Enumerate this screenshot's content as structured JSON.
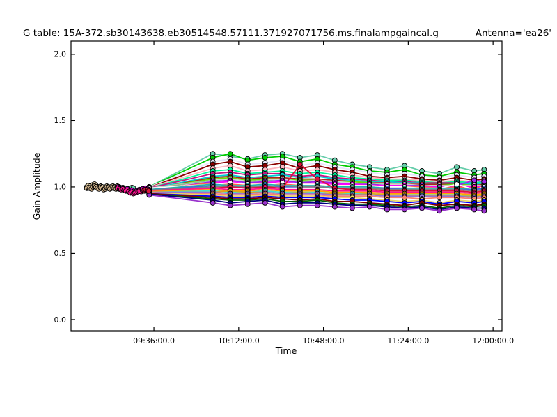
{
  "chart_data": {
    "type": "line",
    "title": {
      "table": "G table: 15A-372.sb30143638.eb30514548.57111.371927071756.ms.finalampgaincal.g",
      "antenna": "Antenna='ea26'"
    },
    "xlabel": "Time",
    "ylabel": "Gain Amplitude",
    "x_unit": "minutes after 09:00:00",
    "xlim_min": [
      0.8,
      183.8
    ],
    "ylim": [
      -0.084,
      2.099
    ],
    "x_ticks": [
      {
        "label": "09:36:00.0",
        "t": 36
      },
      {
        "label": "10:12:00.0",
        "t": 72
      },
      {
        "label": "10:48:00.0",
        "t": 108
      },
      {
        "label": "11:24:00.0",
        "t": 144
      },
      {
        "label": "12:00:00.0",
        "t": 180
      }
    ],
    "y_ticks": [
      {
        "label": "0.0",
        "v": 0.0
      },
      {
        "label": "0.5",
        "v": 0.5
      },
      {
        "label": "1.0",
        "v": 1.0
      },
      {
        "label": "1.5",
        "v": 1.5
      },
      {
        "label": "2.0",
        "v": 2.0
      }
    ],
    "grid": false,
    "legend": "none",
    "marker": "circle",
    "columns_t": [
      34,
      61,
      68.4,
      75.8,
      83.2,
      90.6,
      98,
      105.4,
      112.8,
      120.2,
      127.6,
      135,
      142.4,
      149.8,
      157.2,
      164.6,
      172,
      176.2
    ],
    "series": [
      {
        "color": "#66CDAA",
        "y": [
          1.0,
          1.25,
          1.23,
          1.21,
          1.24,
          1.25,
          1.22,
          1.24,
          1.2,
          1.17,
          1.15,
          1.13,
          1.16,
          1.12,
          1.1,
          1.15,
          1.12,
          1.13
        ]
      },
      {
        "color": "#00CC00",
        "y": [
          1.0,
          1.22,
          1.25,
          1.2,
          1.22,
          1.23,
          1.19,
          1.21,
          1.17,
          1.15,
          1.12,
          1.11,
          1.13,
          1.09,
          1.08,
          1.11,
          1.09,
          1.1
        ]
      },
      {
        "color": "#E6E6FA",
        "y": [
          1.0,
          1.19,
          1.21,
          1.17,
          1.18,
          1.2,
          1.16,
          1.18,
          1.15,
          1.13,
          1.11,
          1.09,
          1.1,
          1.08,
          1.07,
          1.09,
          1.07,
          1.08
        ]
      },
      {
        "color": "#8B0000",
        "y": [
          0.995,
          1.17,
          1.19,
          1.15,
          1.16,
          1.18,
          1.14,
          1.16,
          1.13,
          1.11,
          1.08,
          1.07,
          1.08,
          1.06,
          1.05,
          1.07,
          1.05,
          1.06
        ]
      },
      {
        "color": "#FFB6C1",
        "y": [
          0.995,
          1.14,
          1.16,
          1.12,
          1.13,
          1.15,
          1.12,
          1.13,
          1.11,
          1.09,
          1.07,
          1.06,
          1.06,
          1.05,
          1.04,
          1.05,
          1.04,
          1.05
        ]
      },
      {
        "color": "#00FA9A",
        "y": [
          0.99,
          1.12,
          1.13,
          1.1,
          1.11,
          1.12,
          1.1,
          1.11,
          1.09,
          1.07,
          1.06,
          1.05,
          1.05,
          1.04,
          1.03,
          1.04,
          1.03,
          1.04
        ]
      },
      {
        "color": "#C71585",
        "y": [
          0.99,
          1.1,
          1.11,
          1.09,
          1.1,
          1.1,
          1.08,
          1.09,
          1.07,
          1.06,
          1.05,
          1.04,
          1.04,
          1.03,
          1.03,
          1.03,
          1.02,
          1.03
        ]
      },
      {
        "color": "#00CED1",
        "y": [
          0.985,
          1.08,
          1.09,
          1.07,
          1.08,
          1.09,
          1.07,
          1.08,
          1.06,
          1.05,
          1.04,
          1.04,
          1.03,
          1.03,
          1.02,
          1.03,
          1.02,
          1.03
        ]
      },
      {
        "color": "#B22222",
        "y": [
          0.98,
          1.07,
          1.08,
          1.06,
          1.07,
          1.07,
          1.06,
          1.06,
          1.05,
          1.04,
          1.03,
          1.03,
          1.02,
          1.02,
          1.02,
          1.02,
          1.01,
          1.02
        ]
      },
      {
        "color": "#66DD00",
        "y": [
          0.985,
          1.06,
          1.07,
          1.05,
          1.06,
          1.06,
          1.05,
          1.05,
          1.04,
          1.04,
          1.03,
          1.02,
          1.02,
          1.01,
          1.01,
          1.02,
          1.01,
          1.01
        ]
      },
      {
        "color": "#D3D3D3",
        "y": [
          0.99,
          1.05,
          1.06,
          1.04,
          1.05,
          1.06,
          1.04,
          1.05,
          1.04,
          1.03,
          1.02,
          1.02,
          1.02,
          1.01,
          1.01,
          1.01,
          1.01,
          1.01
        ]
      },
      {
        "color": "#8FBC8F",
        "y": [
          0.985,
          1.05,
          1.04,
          1.04,
          1.05,
          1.04,
          1.04,
          1.04,
          1.03,
          1.02,
          1.02,
          1.01,
          1.01,
          1.01,
          1.0,
          1.01,
          1.0,
          1.01
        ]
      },
      {
        "color": "#A020F0",
        "y": [
          0.97,
          1.04,
          1.05,
          1.03,
          1.04,
          1.05,
          1.03,
          1.04,
          1.03,
          1.02,
          1.02,
          1.01,
          1.01,
          1.01,
          1.0,
          1.01,
          1.05,
          1.04
        ]
      },
      {
        "color": "#FF00FF",
        "y": [
          0.98,
          1.03,
          1.04,
          1.02,
          1.03,
          1.04,
          1.02,
          1.03,
          1.02,
          1.02,
          1.01,
          1.01,
          1.01,
          1.0,
          1.0,
          1.0,
          1.0,
          1.0
        ]
      },
      {
        "color": "#FF6347",
        "y": [
          0.98,
          1.03,
          1.02,
          1.02,
          1.03,
          1.02,
          1.02,
          1.02,
          1.01,
          1.01,
          1.01,
          1.0,
          1.0,
          1.0,
          0.99,
          1.0,
          0.99,
          1.0
        ]
      },
      {
        "color": "#FFFFFF",
        "y": [
          0.99,
          1.02,
          1.03,
          1.02,
          1.02,
          1.03,
          1.02,
          1.02,
          1.01,
          1.01,
          1.01,
          1.0,
          1.0,
          0.99,
          0.99,
          1.02,
          0.98,
          1.0
        ]
      },
      {
        "color": "#20B2AA",
        "y": [
          0.98,
          1.02,
          1.01,
          1.01,
          1.02,
          1.01,
          1.01,
          1.01,
          1.0,
          1.0,
          1.0,
          0.99,
          0.99,
          0.99,
          0.99,
          0.99,
          0.98,
          0.99
        ]
      },
      {
        "color": "#4169E1",
        "y": [
          0.975,
          1.01,
          1.0,
          1.0,
          1.01,
          1.0,
          1.0,
          1.0,
          0.99,
          0.99,
          0.99,
          0.99,
          0.98,
          0.98,
          0.98,
          0.98,
          0.98,
          0.99
        ]
      },
      {
        "color": "#808080",
        "y": [
          0.975,
          1.0,
          1.01,
          1.0,
          1.0,
          1.01,
          1.0,
          1.0,
          0.99,
          0.99,
          0.99,
          0.98,
          0.98,
          0.98,
          0.98,
          0.98,
          0.97,
          0.98
        ]
      },
      {
        "color": "#DC143C",
        "y": [
          0.97,
          0.99,
          1.0,
          0.99,
          1.0,
          0.99,
          1.17,
          1.06,
          0.99,
          0.98,
          0.98,
          0.97,
          0.97,
          0.97,
          0.97,
          0.97,
          0.96,
          0.97
        ]
      },
      {
        "color": "#FF1493",
        "y": [
          0.97,
          0.99,
          0.98,
          0.98,
          0.99,
          0.98,
          0.98,
          0.98,
          0.97,
          0.97,
          0.97,
          0.96,
          0.96,
          0.96,
          0.96,
          0.96,
          0.95,
          0.96
        ]
      },
      {
        "color": "#FFA500",
        "y": [
          0.965,
          0.98,
          0.97,
          0.97,
          0.98,
          0.97,
          0.97,
          0.97,
          0.96,
          0.96,
          0.96,
          0.95,
          0.95,
          0.95,
          0.95,
          0.95,
          0.94,
          0.95
        ]
      },
      {
        "color": "#40E0D0",
        "y": [
          0.96,
          0.97,
          0.96,
          0.96,
          0.97,
          0.96,
          0.96,
          0.96,
          0.95,
          0.95,
          0.95,
          0.94,
          0.94,
          0.94,
          0.94,
          0.94,
          0.93,
          0.94
        ]
      },
      {
        "color": "#DAA520",
        "y": [
          0.96,
          0.96,
          0.97,
          0.96,
          0.96,
          0.95,
          0.96,
          0.95,
          0.95,
          0.94,
          0.95,
          0.94,
          0.94,
          0.93,
          0.94,
          0.93,
          0.93,
          0.94
        ]
      },
      {
        "color": "#9370DB",
        "y": [
          0.96,
          0.96,
          0.95,
          0.95,
          0.96,
          0.95,
          0.95,
          0.95,
          0.94,
          0.94,
          0.94,
          0.93,
          0.93,
          0.93,
          0.93,
          0.93,
          0.92,
          0.93
        ]
      },
      {
        "color": "#FA8072",
        "y": [
          0.955,
          0.95,
          0.94,
          0.94,
          0.95,
          0.94,
          0.94,
          0.94,
          0.93,
          0.93,
          0.93,
          0.92,
          0.92,
          0.91,
          0.92,
          0.92,
          0.91,
          0.92
        ]
      },
      {
        "color": "#E8D66B",
        "y": [
          0.955,
          0.94,
          0.93,
          0.93,
          0.94,
          0.93,
          0.93,
          0.93,
          0.92,
          0.92,
          0.91,
          0.9,
          0.89,
          0.9,
          0.88,
          0.9,
          0.89,
          0.9
        ]
      },
      {
        "color": "#0000FF",
        "y": [
          0.95,
          0.93,
          0.92,
          0.92,
          0.93,
          0.92,
          0.92,
          0.92,
          0.91,
          0.9,
          0.9,
          0.89,
          0.88,
          0.89,
          0.87,
          0.89,
          0.88,
          0.89
        ]
      },
      {
        "color": "#800000",
        "y": [
          0.95,
          0.92,
          0.91,
          0.91,
          0.92,
          0.91,
          0.9,
          0.91,
          0.89,
          0.89,
          0.88,
          0.87,
          0.86,
          0.88,
          0.86,
          0.87,
          0.86,
          0.87
        ]
      },
      {
        "color": "#006400",
        "y": [
          0.945,
          0.91,
          0.9,
          0.9,
          0.91,
          0.89,
          0.89,
          0.9,
          0.88,
          0.87,
          0.87,
          0.86,
          0.85,
          0.86,
          0.84,
          0.86,
          0.85,
          0.86
        ]
      },
      {
        "color": "#000080",
        "y": [
          0.945,
          0.9,
          0.88,
          0.89,
          0.9,
          0.87,
          0.88,
          0.88,
          0.87,
          0.86,
          0.86,
          0.85,
          0.84,
          0.85,
          0.83,
          0.85,
          0.84,
          0.84
        ]
      },
      {
        "color": "#9932CC",
        "y": [
          0.94,
          0.88,
          0.86,
          0.87,
          0.88,
          0.85,
          0.86,
          0.86,
          0.85,
          0.84,
          0.85,
          0.83,
          0.83,
          0.84,
          0.82,
          0.84,
          0.83,
          0.82
        ]
      }
    ],
    "cluster_series": [
      {
        "color": "#F5DEB3",
        "x": [
          7.5,
          8.2,
          8.8,
          9.5,
          10.1,
          10.8,
          11.4,
          12.1,
          12.7,
          13.4,
          14.0,
          14.7,
          15.3,
          16.0,
          16.6,
          17.3,
          17.9,
          18.6,
          19.2,
          19.9,
          20.5,
          21.2
        ],
        "y": [
          1.0,
          1.01,
          1.005,
          0.995,
          1.015,
          1.02,
          1.01,
          1.0,
          0.995,
          1.005,
          1.0,
          0.99,
          0.995,
          1.005,
          1.0,
          0.995,
          1.0,
          1.005,
          1.0,
          0.995,
          1.005,
          1.0
        ]
      },
      {
        "color": "#D2B48C",
        "x": [
          7.5,
          8.2,
          8.8,
          9.5,
          10.1,
          10.8,
          11.4,
          12.1,
          12.7,
          13.4,
          14.0,
          14.7,
          15.3,
          16.0,
          16.6,
          17.3,
          17.9,
          18.6,
          19.2,
          19.9,
          20.5,
          21.2
        ],
        "y": [
          0.99,
          0.995,
          0.99,
          0.985,
          1.0,
          1.005,
          1.0,
          0.99,
          0.985,
          0.995,
          0.99,
          0.98,
          0.985,
          0.995,
          0.99,
          0.985,
          0.99,
          0.995,
          0.99,
          0.985,
          0.99,
          0.985
        ]
      },
      {
        "color": "#66CDAA",
        "x": [
          26.0,
          26.7,
          27.3
        ],
        "y": [
          0.99,
          0.995,
          0.99
        ]
      },
      {
        "color": "#CC00CC",
        "x": [
          20.8,
          21.5,
          22.1,
          22.8,
          23.4,
          24.1,
          24.7,
          25.4,
          26.0,
          26.7,
          27.3,
          28.0,
          28.6,
          29.3,
          29.9,
          30.6,
          31.2,
          31.9,
          32.5,
          33.2,
          33.8
        ],
        "y": [
          1.0,
          0.995,
          0.99,
          0.995,
          0.985,
          0.98,
          0.985,
          0.975,
          0.97,
          0.975,
          0.965,
          0.96,
          0.97,
          0.975,
          0.98,
          0.975,
          0.985,
          0.98,
          0.99,
          0.985,
          0.98
        ]
      },
      {
        "color": "#FF1493",
        "x": [
          20.8,
          21.5,
          22.1,
          22.8,
          23.4,
          24.1,
          24.7,
          25.4,
          26.0,
          26.7,
          27.3,
          28.0,
          28.6,
          29.3,
          29.9,
          30.6,
          31.2,
          31.9,
          32.5,
          33.2,
          33.8
        ],
        "y": [
          0.99,
          0.985,
          0.98,
          0.985,
          0.975,
          0.97,
          0.975,
          0.965,
          0.955,
          0.96,
          0.95,
          0.955,
          0.96,
          0.965,
          0.97,
          0.965,
          0.975,
          0.97,
          0.98,
          0.975,
          0.97
        ]
      },
      {
        "color": "#DC143C",
        "x": [
          31.9,
          32.5,
          33.2,
          33.8
        ],
        "y": [
          0.975,
          0.98,
          0.975,
          0.97
        ]
      }
    ]
  }
}
